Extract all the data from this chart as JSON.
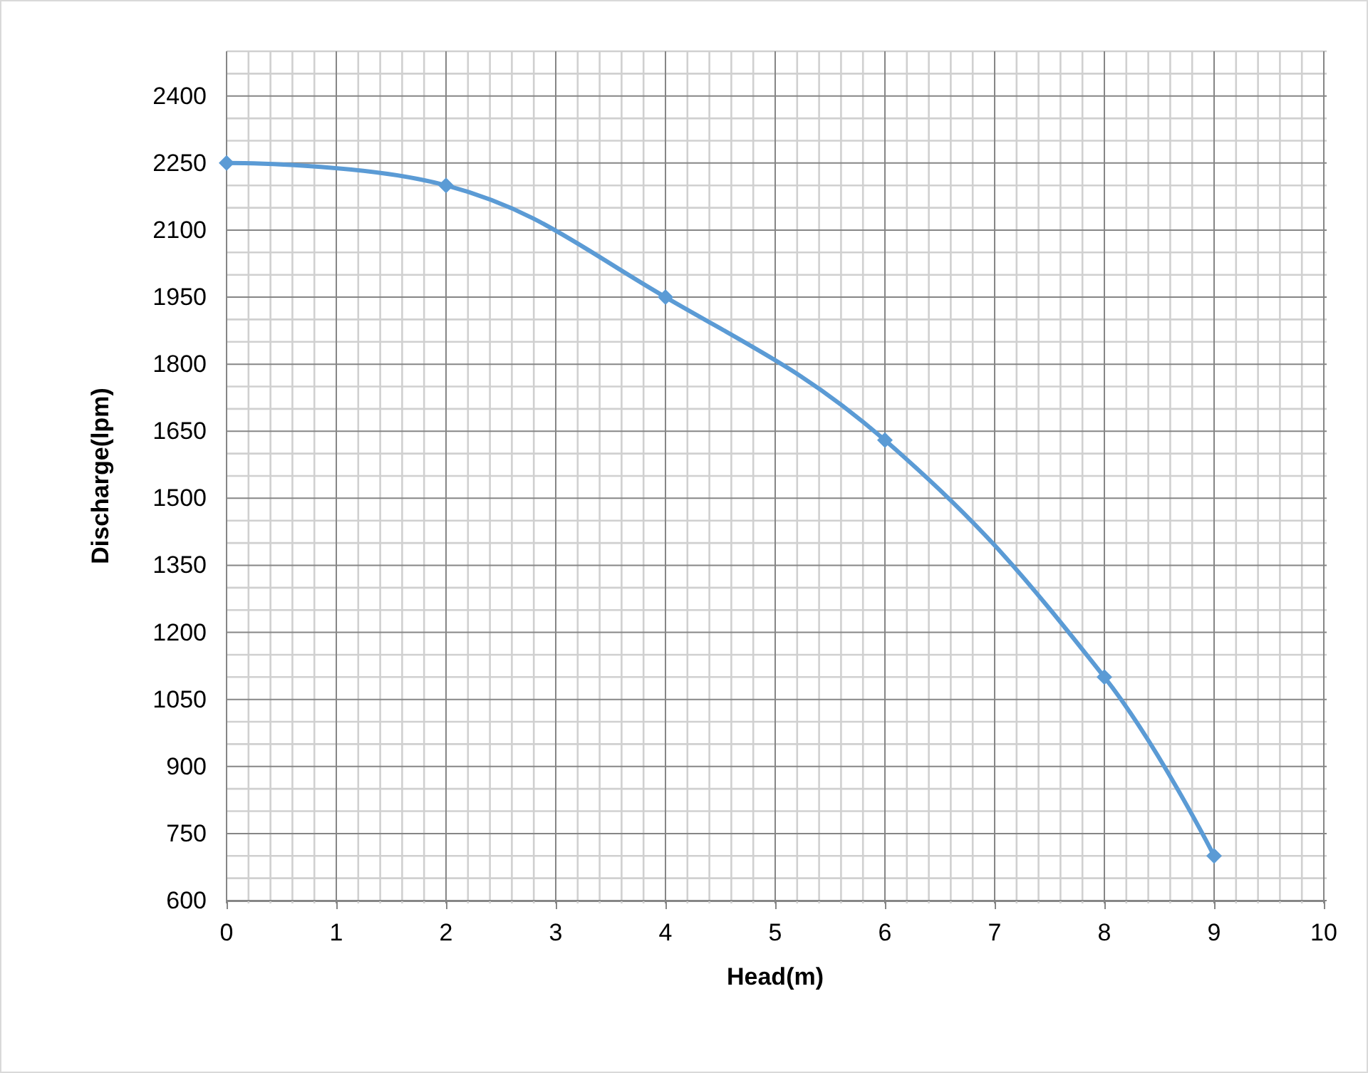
{
  "chart_data": {
    "type": "line",
    "xlabel": "Head(m)",
    "ylabel": "Discharge(lpm)",
    "x": [
      0,
      2,
      4,
      6,
      8,
      9
    ],
    "series": [
      {
        "color": "#5b9bd5",
        "values": [
          2250,
          2200,
          1950,
          1630,
          1100,
          700
        ]
      }
    ],
    "marker": "diamond",
    "line_style": "solid",
    "grid": true,
    "xlim": [
      0,
      10
    ],
    "xticks": [
      0,
      {
        "value": 0.2,
        "label": null
      },
      {
        "value": 0.4,
        "label": null
      },
      {
        "value": 0.6,
        "label": null
      },
      {
        "value": 0.8,
        "label": null
      },
      1,
      {
        "value": 1.2,
        "label": null
      },
      {
        "value": 1.4,
        "label": null
      },
      {
        "value": 1.6,
        "label": null
      },
      {
        "value": 1.8,
        "label": null
      },
      2,
      {
        "value": 2.2,
        "label": null
      },
      {
        "value": 2.4,
        "label": null
      },
      {
        "value": 2.6,
        "label": null
      },
      {
        "value": 2.8,
        "label": null
      },
      3,
      {
        "value": 3.2,
        "label": null
      },
      {
        "value": 3.4,
        "label": null
      },
      {
        "value": 3.6,
        "label": null
      },
      {
        "value": 3.8,
        "label": null
      },
      4,
      {
        "value": 4.2,
        "label": null
      },
      {
        "value": 4.4,
        "label": null
      },
      {
        "value": 4.6,
        "label": null
      },
      {
        "value": 4.8,
        "label": null
      },
      5,
      {
        "value": 5.2,
        "label": null
      },
      {
        "value": 5.4,
        "label": null
      },
      {
        "value": 5.6,
        "label": null
      },
      {
        "value": 5.8,
        "label": null
      },
      6,
      {
        "value": 6.2,
        "label": null
      },
      {
        "value": 6.4,
        "label": null
      },
      {
        "value": 6.6,
        "label": null
      },
      {
        "value": 6.8,
        "label": null
      },
      7,
      {
        "value": 7.2,
        "label": null
      },
      {
        "value": 7.4,
        "label": null
      },
      {
        "value": 7.6,
        "label": null
      },
      {
        "value": 7.8,
        "label": null
      },
      8,
      {
        "value": 8.2,
        "label": null
      },
      {
        "value": 8.4,
        "label": null
      },
      {
        "value": 8.6,
        "label": null
      },
      {
        "value": 8.8,
        "label": null
      },
      9,
      {
        "value": 9.2,
        "label": null
      },
      {
        "value": 9.4,
        "label": null
      },
      {
        "value": 9.6,
        "label": null
      },
      {
        "value": 9.8,
        "label": null
      },
      10
    ],
    "ylim": [
      600,
      2500
    ],
    "yticks": [
      600,
      {
        "value": 650,
        "label": null
      },
      {
        "value": 700,
        "label": null
      },
      750,
      {
        "value": 800,
        "label": null
      },
      {
        "value": 850,
        "label": null
      },
      900,
      {
        "value": 950,
        "label": null
      },
      {
        "value": 1000,
        "label": null
      },
      1050,
      {
        "value": 1100,
        "label": null
      },
      {
        "value": 1150,
        "label": null
      },
      1200,
      {
        "value": 1250,
        "label": null
      },
      {
        "value": 1300,
        "label": null
      },
      1350,
      {
        "value": 1400,
        "label": null
      },
      {
        "value": 1450,
        "label": null
      },
      1500,
      {
        "value": 1550,
        "label": null
      },
      {
        "value": 1600,
        "label": null
      },
      1650,
      {
        "value": 1700,
        "label": null
      },
      {
        "value": 1750,
        "label": null
      },
      1800,
      {
        "value": 1850,
        "label": null
      },
      {
        "value": 1900,
        "label": null
      },
      1950,
      {
        "value": 2000,
        "label": null
      },
      {
        "value": 2050,
        "label": null
      },
      2100,
      {
        "value": 2150,
        "label": null
      },
      {
        "value": 2200,
        "label": null
      },
      2250,
      {
        "value": 2300,
        "label": null
      },
      {
        "value": 2350,
        "label": null
      },
      2400,
      {
        "value": 2450,
        "label": null
      },
      {
        "value": 2500,
        "label": null
      }
    ]
  }
}
